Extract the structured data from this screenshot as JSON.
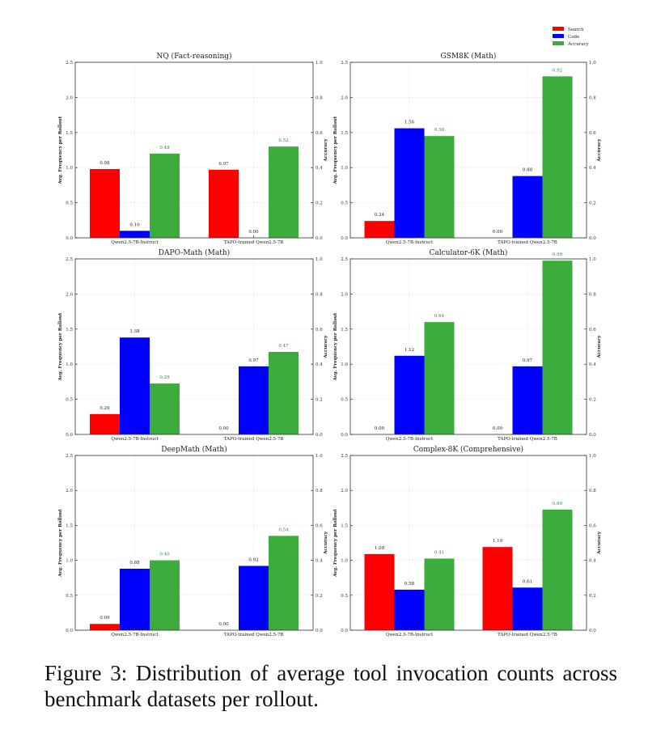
{
  "figure": {
    "legend": [
      {
        "label": "Search",
        "color": "#ff0000"
      },
      {
        "label": "Code",
        "color": "#0000ff"
      },
      {
        "label": "Accuracy",
        "color": "#3cac3c"
      }
    ],
    "left_ylabel": "Avg. Frequency per Rollout",
    "right_ylabel": "Accuracy",
    "caption": "Figure 3: Distribution of average tool invocation counts across benchmark datasets per rollout."
  },
  "chart_data": [
    {
      "type": "bar",
      "title": "NQ (Fact-reasoning)",
      "categories": [
        "Qwen2.5-7B-Instruct",
        "TAPO-trained Qwen2.5-7B"
      ],
      "series": [
        {
          "name": "Search",
          "axis": "left",
          "values": [
            0.98,
            0.97
          ],
          "labels": [
            "0.98",
            "0.97"
          ]
        },
        {
          "name": "Code",
          "axis": "left",
          "values": [
            0.1,
            0.0
          ],
          "labels": [
            "0.10",
            "0.00"
          ]
        },
        {
          "name": "Accuracy",
          "axis": "right",
          "values": [
            0.48,
            0.52
          ],
          "labels": [
            "0.48",
            "0.52"
          ]
        }
      ],
      "ylim": [
        0,
        2.5
      ],
      "y2lim": [
        0,
        1.0
      ],
      "yticks": [
        "0.0",
        "0.5",
        "1.0",
        "1.5",
        "2.0",
        "2.5"
      ],
      "y2ticks": [
        "0.0",
        "0.2",
        "0.4",
        "0.6",
        "0.8",
        "1.0"
      ],
      "ylabel": "Avg. Frequency per Rollout",
      "y2label": "Accuracy",
      "grid": true
    },
    {
      "type": "bar",
      "title": "GSM8K (Math)",
      "categories": [
        "Qwen2.5-7B-Instruct",
        "TAPO-trained Qwen2.5-7B"
      ],
      "series": [
        {
          "name": "Search",
          "axis": "left",
          "values": [
            0.24,
            0.0
          ],
          "labels": [
            "0.24",
            "0.00"
          ]
        },
        {
          "name": "Code",
          "axis": "left",
          "values": [
            1.56,
            0.88
          ],
          "labels": [
            "1.56",
            "0.88"
          ]
        },
        {
          "name": "Accuracy",
          "axis": "right",
          "values": [
            0.58,
            0.92
          ],
          "labels": [
            "0.58",
            "0.92"
          ]
        }
      ],
      "ylim": [
        0,
        2.5
      ],
      "y2lim": [
        0,
        1.0
      ],
      "yticks": [
        "0.0",
        "0.5",
        "1.0",
        "1.5",
        "2.0",
        "2.5"
      ],
      "y2ticks": [
        "0.0",
        "0.2",
        "0.4",
        "0.6",
        "0.8",
        "1.0"
      ],
      "ylabel": "Avg. Frequency per Rollout",
      "y2label": "Accuracy",
      "grid": true
    },
    {
      "type": "bar",
      "title": "DAPO-Math (Math)",
      "categories": [
        "Qwen2.5-7B-Instruct",
        "TAPO-trained Qwen2.5-7B"
      ],
      "series": [
        {
          "name": "Search",
          "axis": "left",
          "values": [
            0.29,
            0.0
          ],
          "labels": [
            "0.29",
            "0.00"
          ]
        },
        {
          "name": "Code",
          "axis": "left",
          "values": [
            1.38,
            0.97
          ],
          "labels": [
            "1.38",
            "0.97"
          ]
        },
        {
          "name": "Accuracy",
          "axis": "right",
          "values": [
            0.29,
            0.47
          ],
          "labels": [
            "0.29",
            "0.47"
          ]
        }
      ],
      "ylim": [
        0,
        2.5
      ],
      "y2lim": [
        0,
        1.0
      ],
      "yticks": [
        "0.0",
        "0.5",
        "1.0",
        "1.5",
        "2.0",
        "2.5"
      ],
      "y2ticks": [
        "0.0",
        "0.2",
        "0.4",
        "0.6",
        "0.8",
        "1.0"
      ],
      "ylabel": "Avg. Frequency per Rollout",
      "y2label": "Accuracy",
      "grid": true
    },
    {
      "type": "bar",
      "title": "Calculator-6K (Math)",
      "categories": [
        "Qwen2.5-7B-Instruct",
        "TAPO-trained Qwen2.5-7B"
      ],
      "series": [
        {
          "name": "Search",
          "axis": "left",
          "values": [
            0.0,
            0.0
          ],
          "labels": [
            "0.00",
            "0.00"
          ]
        },
        {
          "name": "Code",
          "axis": "left",
          "values": [
            1.12,
            0.97
          ],
          "labels": [
            "1.12",
            "0.97"
          ]
        },
        {
          "name": "Accuracy",
          "axis": "right",
          "values": [
            0.64,
            0.99
          ],
          "labels": [
            "0.64",
            "0.99"
          ]
        }
      ],
      "ylim": [
        0,
        2.5
      ],
      "y2lim": [
        0,
        1.0
      ],
      "yticks": [
        "0.0",
        "0.5",
        "1.0",
        "1.5",
        "2.0",
        "2.5"
      ],
      "y2ticks": [
        "0.0",
        "0.2",
        "0.4",
        "0.6",
        "0.8",
        "1.0"
      ],
      "ylabel": "Avg. Frequency per Rollout",
      "y2label": "Accuracy",
      "grid": true
    },
    {
      "type": "bar",
      "title": "DeepMath (Math)",
      "categories": [
        "Qwen2.5-7B-Instruct",
        "TAPO-trained Qwen2.5-7B"
      ],
      "series": [
        {
          "name": "Search",
          "axis": "left",
          "values": [
            0.09,
            0.0
          ],
          "labels": [
            "0.09",
            "0.00"
          ]
        },
        {
          "name": "Code",
          "axis": "left",
          "values": [
            0.88,
            0.92
          ],
          "labels": [
            "0.88",
            "0.92"
          ]
        },
        {
          "name": "Accuracy",
          "axis": "right",
          "values": [
            0.4,
            0.54
          ],
          "labels": [
            "0.40",
            "0.54"
          ]
        }
      ],
      "ylim": [
        0,
        2.5
      ],
      "y2lim": [
        0,
        1.0
      ],
      "yticks": [
        "0.0",
        "0.5",
        "1.0",
        "1.5",
        "2.0",
        "2.5"
      ],
      "y2ticks": [
        "0.0",
        "0.2",
        "0.4",
        "0.6",
        "0.8",
        "1.0"
      ],
      "ylabel": "Avg. Frequency per Rollout",
      "y2label": "Accuracy",
      "grid": true
    },
    {
      "type": "bar",
      "title": "Complex-8K (Comprehensive)",
      "categories": [
        "Qwen2.5-7B-Instruct",
        "TAPO-trained Qwen2.5-7B"
      ],
      "series": [
        {
          "name": "Search",
          "axis": "left",
          "values": [
            1.09,
            1.19
          ],
          "labels": [
            "1.09",
            "1.19"
          ]
        },
        {
          "name": "Code",
          "axis": "left",
          "values": [
            0.58,
            0.61
          ],
          "labels": [
            "0.58",
            "0.61"
          ]
        },
        {
          "name": "Accuracy",
          "axis": "right",
          "values": [
            0.41,
            0.69
          ],
          "labels": [
            "0.41",
            "0.69"
          ]
        }
      ],
      "ylim": [
        0,
        2.5
      ],
      "y2lim": [
        0,
        1.0
      ],
      "yticks": [
        "0.0",
        "0.5",
        "1.0",
        "1.5",
        "2.0",
        "2.5"
      ],
      "y2ticks": [
        "0.0",
        "0.2",
        "0.4",
        "0.6",
        "0.8",
        "1.0"
      ],
      "ylabel": "Avg. Frequency per Rollout",
      "y2label": "Accuracy",
      "grid": true
    }
  ]
}
